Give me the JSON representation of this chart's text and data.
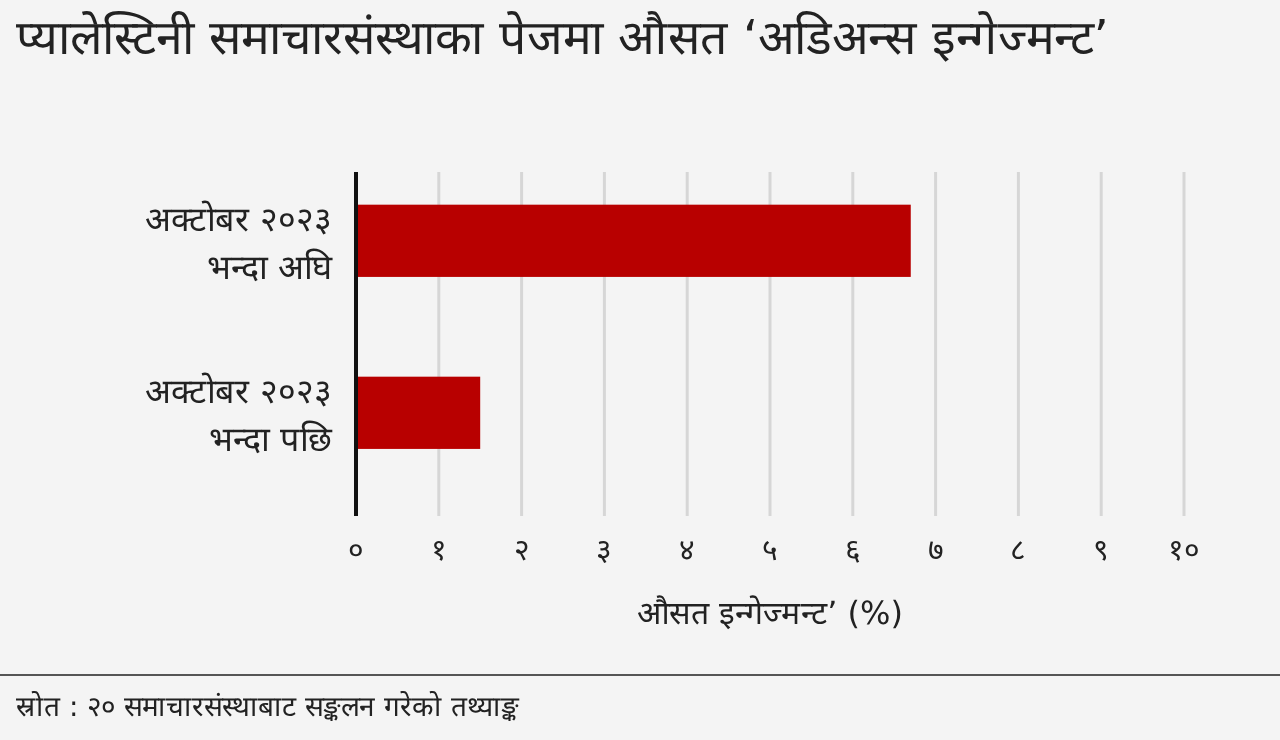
{
  "chart_data": {
    "type": "bar",
    "orientation": "horizontal",
    "title": "प्यालेस्टिनी समाचारसंस्थाका पेजमा औसत ‘अडिअन्स इन्गेज्मन्ट’",
    "categories": [
      "अक्टोबर २०२३ भन्दा अघि",
      "अक्टोबर २०२३ भन्दा पछि"
    ],
    "values": [
      6.7,
      1.5
    ],
    "color": "#b80000",
    "xlabel": "औसत इन्गेज्मन्ट’ (%)",
    "xlim": [
      0,
      10
    ],
    "xticks": [
      {
        "value": 0,
        "label": "०"
      },
      {
        "value": 1,
        "label": "१"
      },
      {
        "value": 2,
        "label": "२"
      },
      {
        "value": 3,
        "label": "३"
      },
      {
        "value": 4,
        "label": "४"
      },
      {
        "value": 5,
        "label": "५"
      },
      {
        "value": 6,
        "label": "६"
      },
      {
        "value": 7,
        "label": "७"
      },
      {
        "value": 8,
        "label": "८"
      },
      {
        "value": 9,
        "label": "९"
      },
      {
        "value": 10,
        "label": "१०"
      }
    ],
    "grid": "x",
    "annotations": [
      "स्रोत : २० समाचारसंस्थाबाट सङ्कलन गरेको तथ्याङ्क"
    ]
  }
}
